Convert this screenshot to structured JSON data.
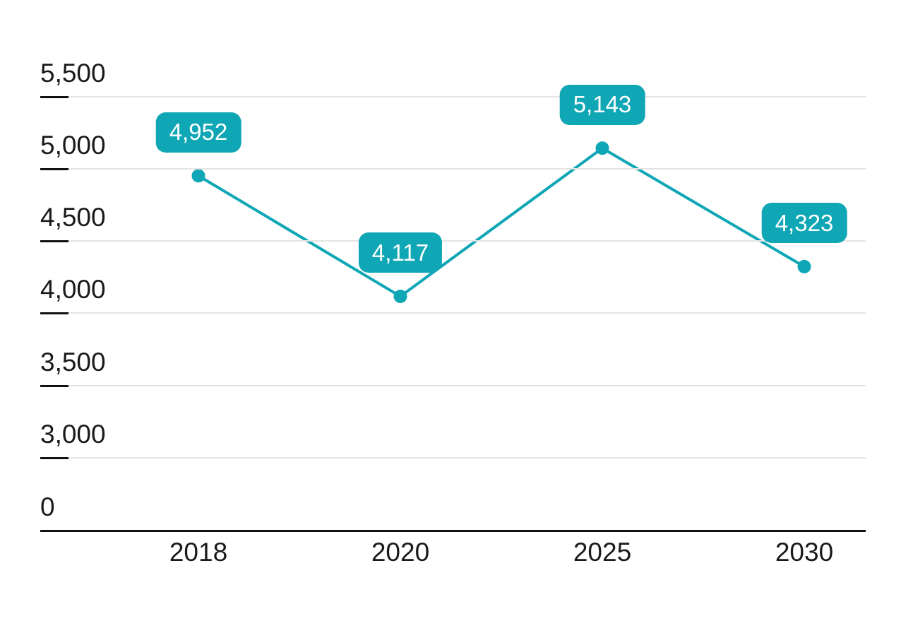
{
  "chart_data": {
    "type": "line",
    "title": "",
    "categories": [
      "2018",
      "2020",
      "2025",
      "2030"
    ],
    "series": [
      {
        "name": "series-1",
        "values": [
          4952,
          4117,
          5143,
          4323
        ]
      }
    ],
    "data_labels": [
      "4,952",
      "4,117",
      "5,143",
      "4,323"
    ],
    "y_axis": {
      "tick_labels": [
        "5,500",
        "5,000",
        "4,500",
        "4,000",
        "3,500",
        "3,000",
        "0"
      ],
      "tick_values": [
        5500,
        5000,
        4500,
        4000,
        3500,
        3000,
        0
      ],
      "axis_break": "scale is compressed between 0 and 3,000",
      "grid": true
    },
    "legend": "none",
    "colors": {
      "line": "#0fa6b5",
      "marker": "#0fa6b5",
      "label_bg": "#0fa6b5",
      "label_text": "#ffffff",
      "grid": "#e4e4e4",
      "axis": "#111111",
      "tick_text": "#1a1a1a"
    }
  }
}
